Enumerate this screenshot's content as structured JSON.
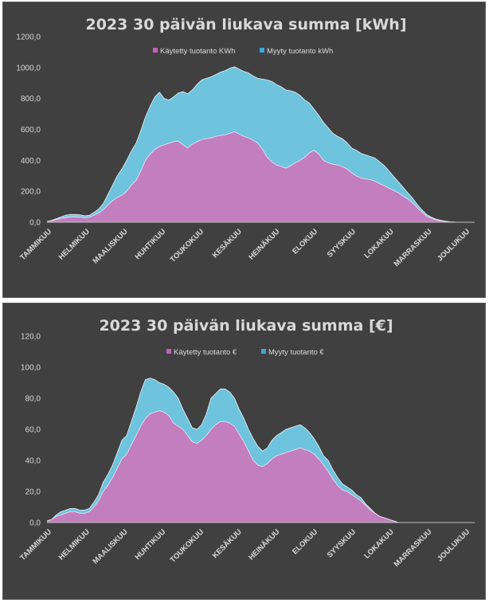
{
  "colors": {
    "background": "#404040",
    "used": "#c27ebf",
    "sold": "#6ec3dd",
    "used_legend": "#c55fbd",
    "sold_legend": "#3aa9d9",
    "text": "#d9d9d9"
  },
  "chart_data": [
    {
      "type": "area",
      "stacked": true,
      "title": "2023 30 päivän liukava summa [kWh]",
      "months": [
        "TAMMIKUU",
        "HELMIKUU",
        "MAALISKUU",
        "HUHTIKUU",
        "TOUKOKUU",
        "KESÄKUU",
        "HEINÄKUU",
        "ELOKUU",
        "SYYSKUU",
        "LOKAKUU",
        "MARRASKUU",
        "JOULUKUU"
      ],
      "yticks": [
        "0,0",
        "200,0",
        "400,0",
        "600,0",
        "800,0",
        "1000,0",
        "1200,0"
      ],
      "ylim": [
        0,
        1200
      ],
      "x": [
        0,
        4,
        8,
        12,
        16,
        20,
        24,
        28,
        32,
        36,
        40,
        44,
        48,
        52,
        56,
        60,
        64,
        68,
        72,
        76,
        80,
        84,
        88,
        92,
        96,
        100,
        104,
        108,
        112,
        116,
        120,
        124,
        128,
        132,
        136,
        140,
        144,
        148,
        152,
        156,
        160,
        164,
        168,
        172,
        176,
        180,
        184,
        188,
        192,
        196,
        200,
        204,
        208,
        212,
        216,
        220,
        224,
        228,
        232,
        236,
        240,
        244,
        248,
        252,
        256,
        260,
        264,
        268,
        272,
        276,
        280,
        284,
        288,
        292,
        296,
        300,
        304,
        308,
        312,
        316,
        320,
        324,
        328,
        332,
        336,
        340,
        344,
        348,
        352
      ],
      "legend_position": "top",
      "series": [
        {
          "name": "Käytetty tuotanto KWh",
          "values": [
            5,
            10,
            18,
            25,
            30,
            35,
            35,
            33,
            30,
            32,
            45,
            60,
            80,
            110,
            140,
            160,
            175,
            200,
            240,
            270,
            330,
            400,
            440,
            470,
            490,
            500,
            510,
            520,
            525,
            500,
            480,
            505,
            520,
            535,
            540,
            545,
            555,
            560,
            565,
            575,
            585,
            570,
            555,
            545,
            530,
            510,
            470,
            420,
            390,
            370,
            360,
            350,
            365,
            385,
            400,
            420,
            450,
            465,
            440,
            400,
            385,
            375,
            370,
            360,
            345,
            320,
            300,
            285,
            280,
            275,
            265,
            250,
            235,
            220,
            205,
            190,
            170,
            150,
            125,
            95,
            65,
            40,
            25,
            15,
            10,
            5,
            2,
            1,
            0
          ]
        },
        {
          "name": "Myyty tuotanto kWh",
          "values": [
            0,
            2,
            5,
            10,
            15,
            15,
            15,
            15,
            12,
            12,
            18,
            25,
            40,
            70,
            100,
            140,
            170,
            200,
            220,
            240,
            260,
            280,
            310,
            340,
            350,
            300,
            280,
            290,
            310,
            345,
            350,
            350,
            370,
            385,
            390,
            395,
            400,
            410,
            415,
            420,
            420,
            420,
            420,
            420,
            415,
            420,
            455,
            500,
            520,
            520,
            515,
            505,
            485,
            455,
            420,
            370,
            320,
            265,
            250,
            245,
            225,
            200,
            185,
            180,
            170,
            160,
            165,
            160,
            155,
            150,
            150,
            140,
            130,
            110,
            90,
            70,
            55,
            40,
            30,
            20,
            15,
            10,
            8,
            5,
            3,
            2,
            1,
            0,
            0
          ]
        }
      ]
    },
    {
      "type": "area",
      "stacked": true,
      "title": "2023 30 päivän liukava summa [€]",
      "months": [
        "TAMMIKUU",
        "HELMIKUU",
        "MAALISKUU",
        "HUHTIKUU",
        "TOUKOKUU",
        "KESÄKUU",
        "HEINÄKUU",
        "ELOKUU",
        "SYYSKUU",
        "LOKAKUU",
        "MARRASKUU",
        "JOULUKUU"
      ],
      "yticks": [
        "0,0",
        "20,0",
        "40,0",
        "60,0",
        "80,0",
        "100,0",
        "120,0"
      ],
      "ylim": [
        0,
        120
      ],
      "x": [
        0,
        4,
        8,
        12,
        16,
        20,
        24,
        28,
        32,
        36,
        40,
        44,
        48,
        52,
        56,
        60,
        64,
        68,
        72,
        76,
        80,
        84,
        88,
        92,
        96,
        100,
        104,
        108,
        112,
        116,
        120,
        124,
        128,
        132,
        136,
        140,
        144,
        148,
        152,
        156,
        160,
        164,
        168,
        172,
        176,
        180,
        184,
        188,
        192,
        196,
        200,
        204,
        208,
        212,
        216,
        220,
        224,
        228,
        232,
        236,
        240,
        244,
        248,
        252,
        256,
        260,
        264,
        268,
        272,
        276,
        280,
        284,
        288,
        292,
        296,
        300,
        304,
        308,
        312,
        316,
        320,
        324,
        328,
        332,
        336,
        340,
        344,
        348,
        352
      ],
      "legend_position": "top",
      "series": [
        {
          "name": "Käytetty tuotanto €",
          "values": [
            1,
            2,
            4,
            5,
            6,
            7,
            7,
            6,
            6,
            7,
            10,
            14,
            20,
            24,
            29,
            35,
            41,
            44,
            50,
            56,
            62,
            67,
            70,
            71,
            72,
            71,
            69,
            64,
            62,
            60,
            56,
            52,
            51,
            53,
            56,
            60,
            63,
            65,
            65,
            64,
            62,
            57,
            52,
            46,
            40,
            37,
            36,
            38,
            41,
            43,
            44,
            45,
            46,
            47,
            48,
            47,
            46,
            44,
            41,
            37,
            33,
            28,
            24,
            21,
            20,
            18,
            16,
            14,
            11,
            8,
            6,
            4,
            3,
            2,
            1,
            0,
            0,
            0,
            0,
            0,
            0,
            0,
            0,
            0,
            0,
            0,
            0,
            0,
            0
          ]
        },
        {
          "name": "Myyty tuotanto €",
          "values": [
            0,
            0,
            1,
            2,
            2,
            2,
            2,
            2,
            2,
            2,
            3,
            4,
            6,
            7,
            8,
            10,
            12,
            12,
            15,
            18,
            22,
            25,
            23,
            21,
            18,
            18,
            18,
            20,
            18,
            13,
            11,
            9,
            9,
            10,
            14,
            20,
            20,
            21,
            21,
            20,
            18,
            16,
            15,
            14,
            14,
            12,
            10,
            10,
            12,
            13,
            14,
            15,
            15,
            15,
            15,
            14,
            12,
            10,
            8,
            6,
            7,
            6,
            5,
            4,
            3,
            3,
            2,
            2,
            1,
            1,
            0,
            0,
            0,
            0,
            0,
            0,
            0,
            0,
            0,
            0,
            0,
            0,
            0,
            0,
            0,
            0,
            0,
            0,
            0
          ]
        }
      ]
    }
  ]
}
